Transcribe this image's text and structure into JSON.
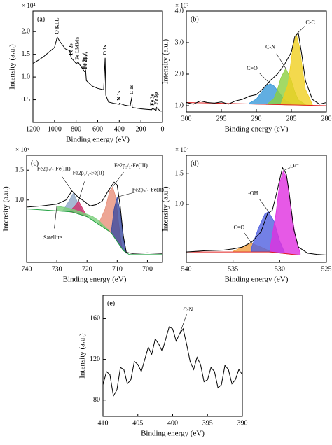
{
  "chart_data": [
    {
      "type": "line",
      "title": "(a)",
      "xlabel": "Binding energy (eV)",
      "ylabel": "Intensity (a.u.)",
      "y_multiplier": "× 10⁴",
      "xlim": [
        1200,
        0
      ],
      "xticks": [
        1200,
        1000,
        800,
        600,
        400,
        200,
        0
      ],
      "ylim": [
        0,
        2.45
      ],
      "yticks": [
        0.5,
        {
          "value": 1,
          "label": "1.0"
        },
        1.5,
        {
          "value": 2,
          "label": "2.0"
        }
      ],
      "series": [
        {
          "color": "#000000",
          "x": [
            1200,
            1150,
            1100,
            1050,
            1000,
            975,
            950,
            900,
            860,
            845,
            800,
            780,
            740,
            723,
            712,
            705,
            650,
            600,
            545,
            531,
            525,
            500,
            450,
            400,
            399,
            350,
            300,
            285,
            280,
            200,
            150,
            100,
            93,
            60,
            55,
            20,
            0
          ],
          "values": [
            1.3,
            1.37,
            1.45,
            1.55,
            1.65,
            1.88,
            1.78,
            1.62,
            1.58,
            1.42,
            1.3,
            1.32,
            1.18,
            1.12,
            1.15,
            0.92,
            0.8,
            0.75,
            0.72,
            1.42,
            0.6,
            0.45,
            0.42,
            0.4,
            0.42,
            0.38,
            0.36,
            0.55,
            0.33,
            0.3,
            0.29,
            0.28,
            0.31,
            0.27,
            0.33,
            0.25,
            0.25
          ]
        }
      ],
      "annotations": [
        {
          "text": "O KLL",
          "x": 975
        },
        {
          "text": "Fe 2s",
          "x": 845
        },
        {
          "text": "Fe LMMa",
          "x": 785
        },
        {
          "text": "Fe 2p₁/₂",
          "x": 723
        },
        {
          "text": "Fe 2p₃/₂",
          "x": 711
        },
        {
          "text": "O 1s",
          "x": 531
        },
        {
          "text": "N 1s",
          "x": 399
        },
        {
          "text": "C 1s",
          "x": 285
        },
        {
          "text": "Fe 3s",
          "x": 93
        },
        {
          "text": "Fe 3p",
          "x": 55
        }
      ]
    },
    {
      "type": "line",
      "title": "(b)",
      "xlabel": "Binding energy (eV)",
      "ylabel": "Intensity (a.u.)",
      "y_multiplier": "× 10²",
      "xlim": [
        300,
        280
      ],
      "xticks": [
        300,
        295,
        290,
        285,
        280
      ],
      "ylim": [
        0.8,
        4.0
      ],
      "yticks": [
        {
          "value": 1,
          "label": "1.0"
        },
        {
          "value": 2,
          "label": "2.0"
        },
        {
          "value": 3,
          "label": "3.0"
        },
        {
          "value": 4,
          "label": "4.0"
        }
      ],
      "series": [
        {
          "color": "#000000",
          "x": [
            300,
            299,
            298,
            297,
            296,
            295,
            294,
            293,
            292,
            291,
            290,
            289,
            288,
            287,
            286,
            285,
            284.5,
            284,
            283.5,
            283,
            282,
            281,
            280
          ],
          "values": [
            1.1,
            1.05,
            1.15,
            1.1,
            1.08,
            1.12,
            1.05,
            1.15,
            1.2,
            1.3,
            1.35,
            1.55,
            1.8,
            2.0,
            2.3,
            2.7,
            3.2,
            3.3,
            2.6,
            1.8,
            1.2,
            1.05,
            1.1
          ]
        }
      ],
      "background": {
        "color": "#e02020",
        "x": [
          300,
          280
        ],
        "values": [
          1.1,
          1.0
        ]
      },
      "components": [
        {
          "name": "C=O",
          "color": "#3a9ad9",
          "x": [
            291,
            290,
            289,
            288.5,
            288,
            287.5,
            287,
            286,
            285
          ],
          "values": [
            1.08,
            1.21,
            1.51,
            1.64,
            1.69,
            1.63,
            1.49,
            1.19,
            1.06
          ]
        },
        {
          "name": "C-N",
          "color": "#8ccf40",
          "x": [
            288.5,
            287.5,
            287,
            286.5,
            285.8,
            285,
            284.5,
            284,
            283
          ],
          "values": [
            1.04,
            1.22,
            1.5,
            1.88,
            2.18,
            1.8,
            1.43,
            1.18,
            1.04
          ]
        },
        {
          "name": "C-C",
          "color": "#f0d020",
          "x": [
            286.5,
            285.5,
            285,
            284.8,
            284.3,
            283.8,
            283.5,
            283,
            282
          ],
          "values": [
            1.05,
            1.65,
            2.48,
            2.82,
            3.27,
            2.82,
            2.29,
            1.52,
            1.04
          ]
        }
      ]
    },
    {
      "type": "line",
      "title": "(c)",
      "xlabel": "Binding energy (eV)",
      "ylabel": "Intensity (a.u.)",
      "y_multiplier": "× 10³",
      "xlim": [
        740,
        695
      ],
      "xticks": [
        740,
        730,
        720,
        710,
        700
      ],
      "ylim": [
        -0.05,
        1.75
      ],
      "yticks": [
        {
          "value": 1,
          "label": "1.0"
        },
        1.5
      ],
      "series": [
        {
          "color": "#000000",
          "x": [
            740,
            735,
            730,
            727,
            725,
            723,
            721,
            719,
            717,
            715,
            713,
            711,
            710,
            709,
            708,
            707,
            705,
            700,
            695
          ],
          "values": [
            0.88,
            0.9,
            0.93,
            1.0,
            1.15,
            1.05,
            0.98,
            0.9,
            0.92,
            0.98,
            1.15,
            1.3,
            1.25,
            0.9,
            0.4,
            0.12,
            0.1,
            0.11,
            0.1
          ]
        }
      ],
      "background": {
        "color": "#20a040",
        "x": [
          740,
          725,
          720,
          712,
          708,
          706,
          695
        ],
        "values": [
          0.85,
          0.8,
          0.72,
          0.45,
          0.15,
          0.08,
          0.08
        ]
      },
      "components": [
        {
          "name": "Fe2p₁/₂-Fe(III)",
          "color": "#8fa8c8",
          "x": [
            728,
            726,
            724.5,
            723,
            721
          ],
          "values": [
            0.82,
            0.98,
            1.12,
            0.95,
            0.76
          ]
        },
        {
          "name": "Fe2p₁/₂-Fe(II)",
          "color": "#d0306a",
          "x": [
            726,
            724,
            722.8,
            721.5,
            720
          ],
          "values": [
            0.8,
            0.9,
            0.98,
            0.86,
            0.72
          ]
        },
        {
          "name": "Fe2p₃/₂-Fe(III)",
          "color": "#e8907a",
          "x": [
            716,
            714,
            712.5,
            711.5,
            710.5,
            709.5,
            708.5
          ],
          "values": [
            0.62,
            0.85,
            1.15,
            1.22,
            1.05,
            0.6,
            0.22
          ]
        },
        {
          "name": "Fe2p₃/₂-Fe(II)",
          "color": "#3a4aa0",
          "x": [
            712,
            711,
            710,
            709,
            708,
            707
          ],
          "values": [
            0.45,
            0.85,
            1.05,
            0.8,
            0.35,
            0.1
          ]
        },
        {
          "name": "Satellite",
          "color": "#7ccf7c",
          "x": [
            730,
            725,
            720,
            718,
            716,
            713
          ],
          "values": [
            0.9,
            0.85,
            0.76,
            0.72,
            0.65,
            0.5
          ]
        }
      ]
    },
    {
      "type": "line",
      "title": "(d)",
      "xlabel": "Binding energy (eV)",
      "ylabel": "Intensity (a.u.)",
      "y_multiplier": "× 10³",
      "xlim": [
        540,
        525
      ],
      "xticks": [
        540,
        535,
        530,
        525
      ],
      "ylim": [
        0.05,
        1.8
      ],
      "yticks": [
        {
          "value": 1,
          "label": "1.0"
        },
        1.5
      ],
      "series": [
        {
          "color": "#000000",
          "x": [
            540,
            538,
            536,
            535,
            534,
            533,
            532,
            531.3,
            530.8,
            530.3,
            529.7,
            529.3,
            529,
            528.5,
            528,
            527,
            526,
            525
          ],
          "values": [
            0.22,
            0.24,
            0.25,
            0.27,
            0.3,
            0.38,
            0.55,
            0.85,
            0.9,
            1.2,
            1.6,
            1.5,
            1.2,
            0.6,
            0.3,
            0.2,
            0.18,
            0.17
          ]
        }
      ],
      "background": {
        "color": "#e02020",
        "x": [
          540,
          531,
          528,
          525
        ],
        "values": [
          0.22,
          0.22,
          0.17,
          0.17
        ]
      },
      "components": [
        {
          "name": "C=O",
          "color": "#f0a040",
          "x": [
            535,
            534,
            533,
            532,
            531
          ],
          "values": [
            0.23,
            0.3,
            0.36,
            0.3,
            0.23
          ]
        },
        {
          "name": "-OH",
          "color": "#5060e0",
          "x": [
            533,
            532.3,
            531.6,
            531.2,
            530.6,
            530,
            529.5
          ],
          "values": [
            0.3,
            0.6,
            0.84,
            0.88,
            0.72,
            0.4,
            0.22
          ]
        },
        {
          "name": "O²⁻",
          "color": "#e030e0",
          "x": [
            531,
            530.4,
            530,
            529.6,
            529.2,
            528.8,
            528.3,
            527.8
          ],
          "values": [
            0.3,
            0.85,
            1.35,
            1.55,
            1.4,
            0.95,
            0.45,
            0.2
          ]
        }
      ]
    },
    {
      "type": "line",
      "title": "(e)",
      "xlabel": "Binding energy (eV)",
      "ylabel": "Intensity (a.u.)",
      "xlim": [
        410,
        390
      ],
      "xticks": [
        410,
        405,
        400,
        395,
        390
      ],
      "ylim": [
        64,
        183
      ],
      "yticks": [
        80,
        120,
        160
      ],
      "series": [
        {
          "color": "#000000",
          "x": [
            410,
            409.5,
            409,
            408.5,
            408,
            407.5,
            407,
            406.5,
            406,
            405.5,
            405,
            404.5,
            404,
            403.5,
            403,
            402.5,
            402,
            401.5,
            401,
            400.5,
            400,
            399.5,
            399,
            398.5,
            398,
            397.5,
            397,
            396.5,
            396,
            395.5,
            395,
            394.5,
            394,
            393.5,
            393,
            392.5,
            392,
            391.5,
            391,
            390.5,
            390
          ],
          "values": [
            95,
            108,
            105,
            84,
            90,
            112,
            110,
            96,
            100,
            118,
            115,
            108,
            120,
            132,
            125,
            140,
            135,
            128,
            140,
            152,
            150,
            138,
            145,
            150,
            135,
            118,
            110,
            122,
            115,
            98,
            100,
            112,
            108,
            92,
            95,
            114,
            110,
            96,
            100,
            110,
            105
          ]
        }
      ],
      "annotations": [
        {
          "text": "C-N",
          "x": 399
        }
      ]
    }
  ]
}
